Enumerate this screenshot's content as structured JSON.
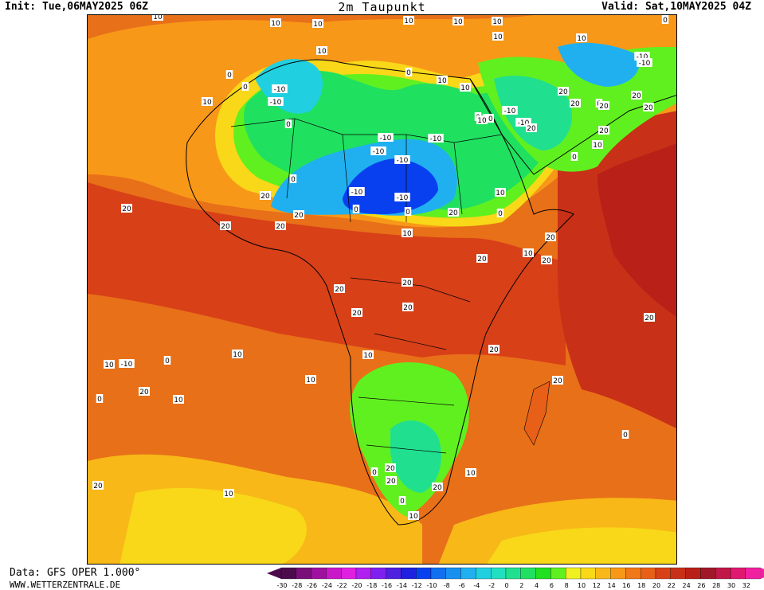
{
  "header": {
    "init": "Init: Tue,06MAY2025 06Z",
    "title": "2m Taupunkt",
    "valid": "Valid: Sat,10MAY2025 04Z"
  },
  "footer": {
    "data_source": "Data: GFS OPER 1.000°",
    "website": "WWW.WETTERZENTRALE.DE"
  },
  "colorbar": {
    "ticks": [
      "-30",
      "-28",
      "-26",
      "-24",
      "-22",
      "-20",
      "-18",
      "-16",
      "-14",
      "-12",
      "-10",
      "-8",
      "-6",
      "-4",
      "-2",
      "0",
      "2",
      "4",
      "6",
      "8",
      "10",
      "12",
      "14",
      "16",
      "18",
      "20",
      "22",
      "24",
      "26",
      "28",
      "30",
      "32"
    ],
    "colors": [
      "#4d0a4d",
      "#7a0f7a",
      "#a010a0",
      "#c818c8",
      "#e020e0",
      "#b020f0",
      "#8020f0",
      "#5020e0",
      "#2020e0",
      "#0840f0",
      "#1070f0",
      "#1890f0",
      "#20b0f0",
      "#20d0e0",
      "#20e0c0",
      "#20e090",
      "#20e060",
      "#20e020",
      "#60f020",
      "#f0f020",
      "#f8d818",
      "#f8b818",
      "#f89818",
      "#f07818",
      "#e86018",
      "#d84018",
      "#c83018",
      "#b82018",
      "#a01828",
      "#c01848",
      "#e01870",
      "#f020a0"
    ]
  },
  "contour_labels": [
    "10",
    "10",
    "10",
    "10",
    "10",
    "10",
    "10",
    "10",
    "10",
    "0",
    "10",
    "10",
    "-10",
    "-10",
    "0",
    "0",
    "0",
    "10",
    "10",
    "10",
    "-10",
    "-10",
    "-10",
    "-10",
    "-10",
    "-10",
    "0",
    "-10",
    "-10",
    "0",
    "10",
    "10",
    "20",
    "20",
    "20",
    "20",
    "20",
    "20",
    "20",
    "20",
    "20",
    "20",
    "20",
    "20",
    "20",
    "20",
    "20",
    "20",
    "20",
    "10",
    "20",
    "20",
    "20",
    "20",
    "0",
    "0",
    "0",
    "0",
    "0",
    "20",
    "10",
    "10",
    "10",
    "10",
    "-10",
    "-10",
    "0",
    "0",
    "20",
    "20",
    "10",
    "10",
    "0",
    "-10",
    "0",
    "20",
    "10",
    "10",
    "10",
    "20",
    "20",
    "0",
    "0",
    "10",
    "20",
    "10",
    "10",
    "20"
  ]
}
